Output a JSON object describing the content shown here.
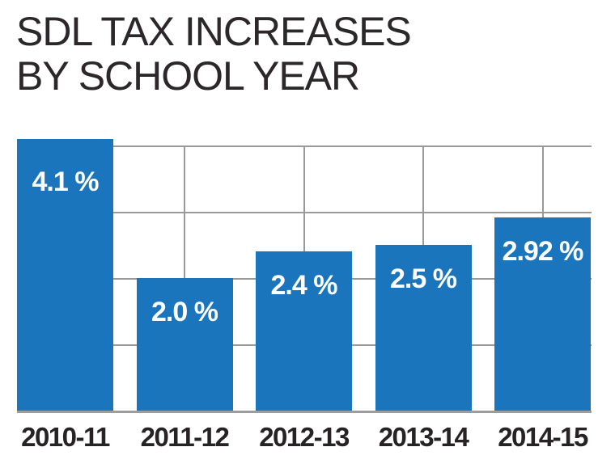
{
  "title": {
    "line1": "SDL TAX INCREASES",
    "line2": "BY SCHOOL YEAR"
  },
  "chart_data": {
    "type": "bar",
    "title": "SDL TAX INCREASES BY SCHOOL YEAR",
    "categories": [
      "2010-11",
      "2011-12",
      "2012-13",
      "2013-14",
      "2014-15"
    ],
    "values": [
      4.1,
      2.0,
      2.4,
      2.5,
      2.92
    ],
    "value_labels": [
      "4.1 %",
      "2.0 %",
      "2.4 %",
      "2.5 %",
      "2.92 %"
    ],
    "xlabel": "",
    "ylabel": "",
    "ylim": [
      0,
      4.5
    ],
    "gridlines_y": [
      1,
      2,
      3,
      4
    ],
    "grid": "horizontal gridlines at 1% steps plus vertical gridlines at each bar center",
    "legend_position": "none",
    "bar_color": "#1b75bc",
    "value_label_color": "#ffffff",
    "gridline_color": "#98999b",
    "axis_label_color": "#272325",
    "title_color": "#2b272a",
    "background_color": "#ffffff"
  }
}
